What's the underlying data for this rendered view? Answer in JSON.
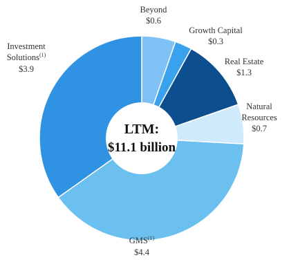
{
  "chart_data": {
    "type": "pie",
    "donut": true,
    "center_label": {
      "line1": "LTM:",
      "line2": "$11.1 billion"
    },
    "slices": [
      {
        "name": "Beyond",
        "value_label": "$0.6",
        "value": 0.6,
        "color": "#7fc1f5"
      },
      {
        "name": "Growth Capital",
        "value_label": "$0.3",
        "value": 0.3,
        "color": "#3aa1ec"
      },
      {
        "name": "Real Estate",
        "value_label": "$1.3",
        "value": 1.3,
        "color": "#0d4f8e"
      },
      {
        "name": "Natural Resources",
        "value_label": "$0.7",
        "value": 0.7,
        "color": "#cfeafb"
      },
      {
        "name": "GMS",
        "superscript": "(1)",
        "value_label": "$4.4",
        "value": 4.4,
        "color": "#6cc0f0"
      },
      {
        "name": "Investment Solutions",
        "superscript": "(1)",
        "value_label": "$3.9",
        "value": 3.9,
        "color": "#2f92e2"
      }
    ],
    "legend": "none"
  }
}
